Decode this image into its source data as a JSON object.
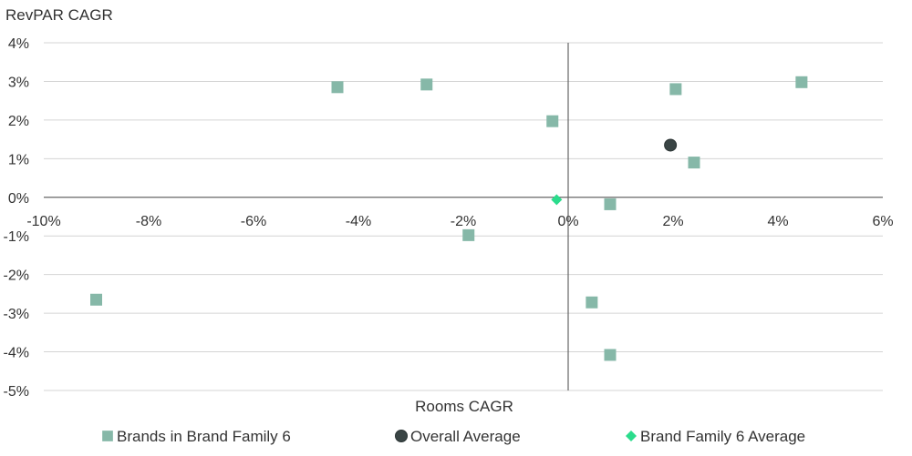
{
  "chart_data": {
    "type": "scatter",
    "ylabel": "RevPAR CAGR",
    "xlabel": "Rooms CAGR",
    "xlim": [
      -10,
      6
    ],
    "ylim": [
      -5,
      4
    ],
    "x_ticks": [
      -10,
      -8,
      -6,
      -4,
      -2,
      0,
      2,
      4,
      6
    ],
    "x_tick_labels": [
      "-10%",
      "-8%",
      "-6%",
      "-4%",
      "-2%",
      "0%",
      "2%",
      "4%",
      "6%"
    ],
    "y_ticks": [
      4,
      3,
      2,
      1,
      0,
      -1,
      -2,
      -3,
      -4,
      -5
    ],
    "y_tick_labels": [
      "4%",
      "3%",
      "2%",
      "1%",
      "0%",
      "-1%",
      "-2%",
      "-3%",
      "-4%",
      "-5%"
    ],
    "grid": "horizontal",
    "legend_position": "bottom",
    "series": [
      {
        "name": "Brands in Brand Family 6",
        "marker": "square",
        "color": "#86B8A8",
        "points": [
          {
            "x": -9.0,
            "y": -2.65
          },
          {
            "x": -4.4,
            "y": 2.85
          },
          {
            "x": -2.7,
            "y": 2.92
          },
          {
            "x": -1.9,
            "y": -0.98
          },
          {
            "x": -0.3,
            "y": 1.97
          },
          {
            "x": 0.45,
            "y": -2.72
          },
          {
            "x": 0.8,
            "y": -0.18
          },
          {
            "x": 0.8,
            "y": -4.08
          },
          {
            "x": 2.05,
            "y": 2.8
          },
          {
            "x": 2.4,
            "y": 0.9
          },
          {
            "x": 4.45,
            "y": 2.98
          }
        ]
      },
      {
        "name": "Overall Average",
        "marker": "circle",
        "color": "#3A4545",
        "points": [
          {
            "x": 1.95,
            "y": 1.35
          }
        ]
      },
      {
        "name": "Brand Family 6 Average",
        "marker": "diamond",
        "color": "#2BDC8C",
        "points": [
          {
            "x": -0.22,
            "y": -0.06
          }
        ]
      }
    ]
  }
}
